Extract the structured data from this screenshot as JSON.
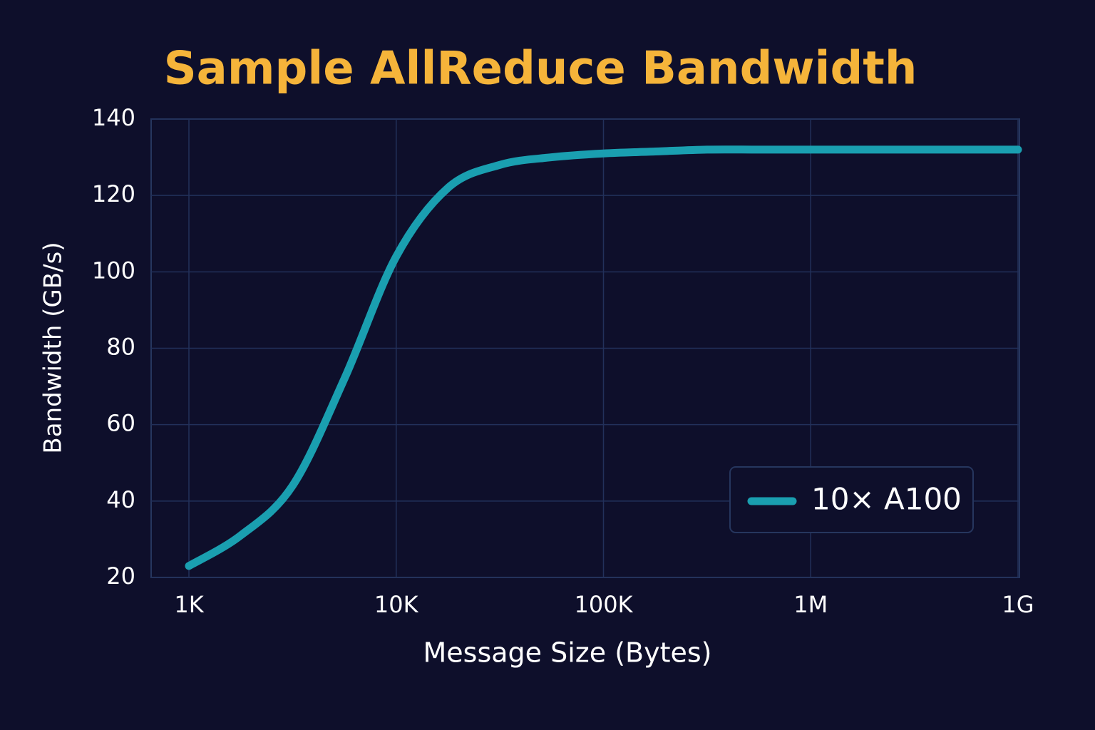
{
  "chart_data": {
    "type": "line",
    "title": "Sample AllReduce Bandwidth",
    "x_label": "Message Size (Bytes)",
    "y_label": "Bandwidth (GB/s)",
    "categories": [
      "1K",
      null,
      null,
      null,
      "10K",
      null,
      null,
      null,
      "100K",
      null,
      null,
      null,
      "1M",
      null,
      null,
      null,
      "1G"
    ],
    "series": [
      {
        "name": "10× A100",
        "color": "#1a9fb0",
        "values": [
          23,
          31,
          44,
          72,
          104,
          122,
          128,
          130,
          131,
          131.5,
          132,
          132,
          132,
          132,
          132,
          132,
          132
        ]
      }
    ],
    "ylim": [
      20,
      140
    ],
    "yticks": [
      20,
      40,
      60,
      80,
      100,
      120,
      140
    ],
    "grid": true,
    "legend": "lower right"
  }
}
